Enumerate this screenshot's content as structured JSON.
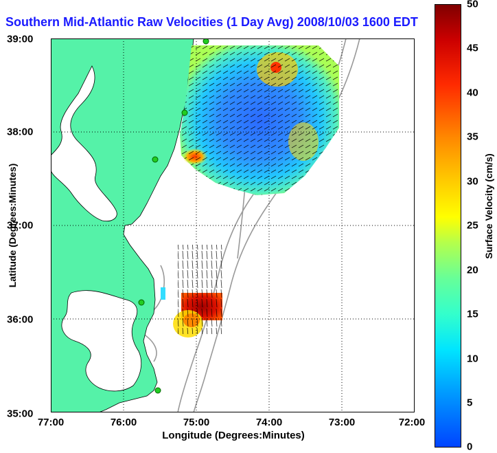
{
  "title": "Southern Mid-Atlantic Raw Velocities (1 Day Avg) 2008/10/03 1600 EDT",
  "x_axis": {
    "label": "Longitude (Degrees:Minutes)",
    "ticks": [
      "77:00",
      "76:00",
      "75:00",
      "74:00",
      "73:00",
      "72:00"
    ]
  },
  "y_axis": {
    "label": "Latitude (Degrees:Minutes)",
    "ticks": [
      "39:00",
      "38:00",
      "37:00",
      "36:00",
      "35:00"
    ]
  },
  "colorbar": {
    "label": "Surface Velocity (cm/s)",
    "ticks": [
      "50",
      "45",
      "40",
      "35",
      "30",
      "25",
      "20",
      "15",
      "10",
      "5",
      "0"
    ],
    "min": 0,
    "max": 50
  },
  "colors": {
    "land": "#55f2a8",
    "title": "#1a1aff",
    "bathymetry": "#999999",
    "station": "#22cc22"
  },
  "map_region": {
    "lon_range": [
      -77,
      -72
    ],
    "lat_range": [
      35,
      39
    ]
  }
}
